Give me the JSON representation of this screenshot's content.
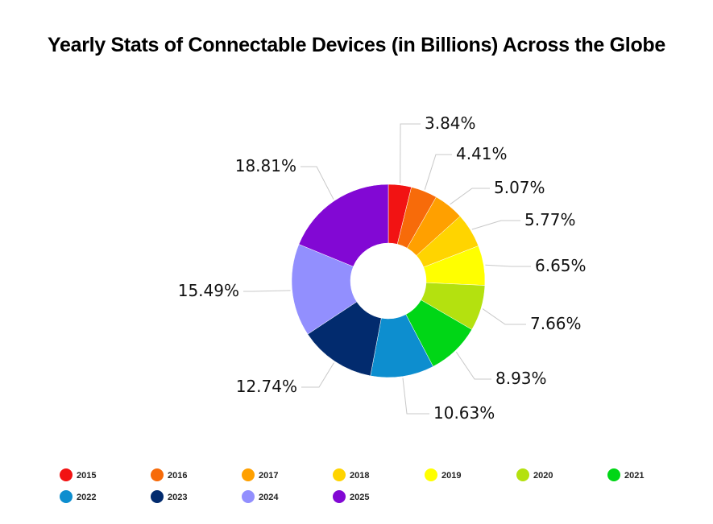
{
  "chart_data": {
    "type": "pie",
    "subtype": "donut",
    "title": "Yearly Stats of Connectable Devices (in Billions) Across the Globe",
    "categories": [
      "2015",
      "2016",
      "2017",
      "2018",
      "2019",
      "2020",
      "2021",
      "2022",
      "2023",
      "2024",
      "2025"
    ],
    "values": [
      3.84,
      4.41,
      5.07,
      5.77,
      6.65,
      7.66,
      8.93,
      10.63,
      12.74,
      15.49,
      18.81
    ],
    "labels": [
      "3.84%",
      "4.41%",
      "5.07%",
      "5.77%",
      "6.65%",
      "7.66%",
      "8.93%",
      "10.63%",
      "12.74%",
      "15.49%",
      "18.81%"
    ],
    "colors": [
      "#f21313",
      "#f76b0a",
      "#ffa000",
      "#ffd400",
      "#ffff00",
      "#b4e10f",
      "#00d616",
      "#0d8ecf",
      "#022b6e",
      "#928ffe",
      "#8208d4"
    ],
    "legend_position": "bottom"
  }
}
